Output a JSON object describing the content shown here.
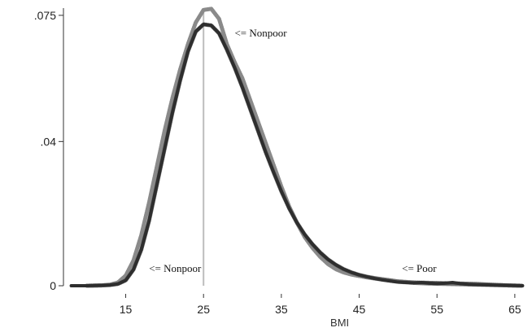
{
  "chart_data": {
    "type": "line",
    "title": "",
    "xlabel": "BMI",
    "ylabel": "",
    "xlim": [
      7,
      67
    ],
    "ylim": [
      0,
      0.077
    ],
    "x_ticks": [
      {
        "value": 15,
        "label": "15"
      },
      {
        "value": 25,
        "label": "25"
      },
      {
        "value": 35,
        "label": "35"
      },
      {
        "value": 45,
        "label": "45"
      },
      {
        "value": 55,
        "label": "55"
      },
      {
        "value": 65,
        "label": "65"
      }
    ],
    "y_ticks": [
      {
        "value": 0,
        "label": "0"
      },
      {
        "value": 0.04,
        "label": ".04"
      },
      {
        "value": 0.075,
        "label": ".075"
      }
    ],
    "reference_line_x": 25,
    "grid": false,
    "series": [
      {
        "color": "#8a8a8a",
        "x": [
          10,
          12,
          13,
          14,
          15,
          16,
          17,
          18,
          19,
          20,
          21,
          22,
          23,
          24,
          25,
          26,
          27,
          28,
          29,
          30,
          31,
          32,
          33,
          34,
          35,
          36,
          37,
          38,
          39,
          40,
          41,
          42,
          43,
          44,
          45,
          46,
          47,
          48,
          49,
          50,
          52,
          54,
          56,
          58,
          60,
          62,
          64,
          66
        ],
        "values": [
          0,
          0.0001,
          0.0003,
          0.0009,
          0.0028,
          0.007,
          0.014,
          0.023,
          0.033,
          0.043,
          0.052,
          0.06,
          0.067,
          0.073,
          0.0765,
          0.0768,
          0.074,
          0.067,
          0.062,
          0.0575,
          0.0515,
          0.0455,
          0.0395,
          0.0335,
          0.0275,
          0.022,
          0.0175,
          0.0135,
          0.0105,
          0.008,
          0.006,
          0.0046,
          0.0037,
          0.0031,
          0.0027,
          0.0023,
          0.002,
          0.0017,
          0.0014,
          0.0011,
          0.0008,
          0.0006,
          0.0005,
          0.0004,
          0.0003,
          0.0002,
          0.0001,
          0
        ]
      },
      {
        "color": "#6f6f6f",
        "x": [
          10,
          12,
          13,
          14,
          15,
          16,
          17,
          18,
          19,
          20,
          21,
          22,
          23,
          24,
          25,
          26,
          27,
          28,
          29,
          30,
          31,
          32,
          33,
          34,
          35,
          36,
          37,
          38,
          39,
          40,
          41,
          42,
          43,
          44,
          45,
          46,
          47,
          48,
          49,
          50,
          52,
          54,
          56,
          58,
          60,
          62,
          64,
          66
        ],
        "values": [
          0,
          0.0001,
          0.0002,
          0.0005,
          0.0015,
          0.0045,
          0.01,
          0.018,
          0.028,
          0.038,
          0.048,
          0.057,
          0.065,
          0.0705,
          0.0725,
          0.0722,
          0.07,
          0.0655,
          0.0605,
          0.055,
          0.049,
          0.043,
          0.037,
          0.0315,
          0.0262,
          0.0215,
          0.0175,
          0.0142,
          0.0115,
          0.0092,
          0.0073,
          0.0058,
          0.0046,
          0.0037,
          0.003,
          0.0025,
          0.0021,
          0.0018,
          0.0015,
          0.0012,
          0.0009,
          0.0008,
          0.0007,
          0.0006,
          0.0005,
          0.0003,
          0.0001,
          0
        ]
      },
      {
        "color": "#2e2e2e",
        "x": [
          8,
          10,
          12,
          13,
          14,
          15,
          16,
          17,
          18,
          19,
          20,
          21,
          22,
          23,
          24,
          25,
          26,
          27,
          28,
          29,
          30,
          31,
          32,
          33,
          34,
          35,
          36,
          37,
          38,
          39,
          40,
          41,
          42,
          43,
          44,
          45,
          46,
          47,
          48,
          49,
          50,
          51,
          52,
          53,
          54,
          55,
          56,
          57,
          58,
          59,
          60,
          62,
          64,
          66
        ],
        "values": [
          0,
          0,
          0.0001,
          0.0002,
          0.0005,
          0.0015,
          0.0045,
          0.01,
          0.018,
          0.028,
          0.038,
          0.048,
          0.057,
          0.065,
          0.0705,
          0.0725,
          0.0722,
          0.07,
          0.0655,
          0.0605,
          0.055,
          0.049,
          0.043,
          0.037,
          0.0315,
          0.0262,
          0.0215,
          0.0175,
          0.0142,
          0.0115,
          0.0092,
          0.0073,
          0.0058,
          0.0046,
          0.0037,
          0.003,
          0.0025,
          0.002,
          0.0016,
          0.0013,
          0.001,
          0.0009,
          0.0008,
          0.0009,
          0.0007,
          0.0006,
          0.0007,
          0.0009,
          0.0006,
          0.0004,
          0.0003,
          0.0002,
          0.0001,
          0
        ]
      }
    ],
    "annotations": [
      {
        "text": "<= Nonpoor",
        "x": 29,
        "y": 0.07
      },
      {
        "text": "<= Nonpoor",
        "x": 18,
        "y": 0.0047
      },
      {
        "text": "<= Poor",
        "x": 50.5,
        "y": 0.0047
      }
    ]
  }
}
